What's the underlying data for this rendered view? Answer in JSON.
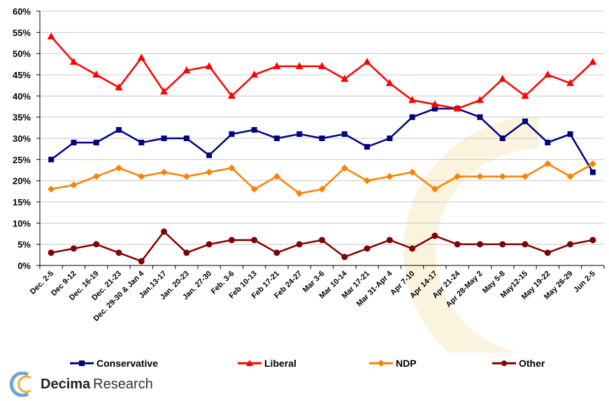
{
  "chart_data": {
    "type": "line",
    "categories": [
      "Dec. 2-5",
      "Dec 9-12",
      "Dec. 16-19",
      "Dec. 21-23",
      "Dec. 29-30 & Jan 4",
      "Jan.13-17",
      "Jan. 20-23",
      "Jan. 27-30",
      "Feb. 3-6",
      "Feb 10-13",
      "Feb 17-21",
      "Feb 24-27",
      "Mar 3-6",
      "Mar 10-14",
      "Mar 17-21",
      "Mar 31-Apr 4",
      "Apr 7-10",
      "Apr 14-17",
      "Apr 21-24",
      "Apr 28-May 2",
      "May 5-8",
      "May12-15",
      "May 19-22",
      "May 26-29",
      "Jun 2-5"
    ],
    "ylim": [
      0,
      60
    ],
    "yticks": [
      0,
      5,
      10,
      15,
      20,
      25,
      30,
      35,
      40,
      45,
      50,
      55,
      60
    ],
    "ytick_labels": [
      "0%",
      "5%",
      "10%",
      "15%",
      "20%",
      "25%",
      "30%",
      "35%",
      "40%",
      "45%",
      "50%",
      "55%",
      "60%"
    ],
    "grid": "horizontal",
    "legend_position": "bottom",
    "series": [
      {
        "name": "Conservative",
        "color": "#000080",
        "marker": "square",
        "values": [
          25,
          29,
          29,
          32,
          29,
          30,
          30,
          26,
          31,
          32,
          30,
          31,
          30,
          31,
          28,
          30,
          35,
          37,
          37,
          35,
          30,
          34,
          29,
          31,
          22
        ]
      },
      {
        "name": "Liberal",
        "color": "#ff0000",
        "marker": "triangle",
        "values": [
          54,
          48,
          45,
          42,
          49,
          41,
          46,
          47,
          40,
          45,
          47,
          47,
          47,
          44,
          48,
          43,
          39,
          38,
          37,
          39,
          44,
          40,
          45,
          43,
          48
        ]
      },
      {
        "name": "NDP",
        "color": "#ff8000",
        "marker": "diamond",
        "values": [
          18,
          19,
          21,
          23,
          21,
          22,
          21,
          22,
          23,
          18,
          21,
          17,
          18,
          23,
          20,
          21,
          22,
          18,
          21,
          21,
          21,
          21,
          24,
          21,
          24
        ]
      },
      {
        "name": "Other",
        "color": "#800000",
        "marker": "circle",
        "values": [
          3,
          4,
          5,
          3,
          1,
          8,
          3,
          5,
          6,
          6,
          3,
          5,
          6,
          2,
          4,
          6,
          4,
          7,
          5,
          5,
          5,
          5,
          3,
          5,
          6
        ]
      }
    ]
  },
  "logo": {
    "bold": "Decima",
    "regular": "Research"
  }
}
